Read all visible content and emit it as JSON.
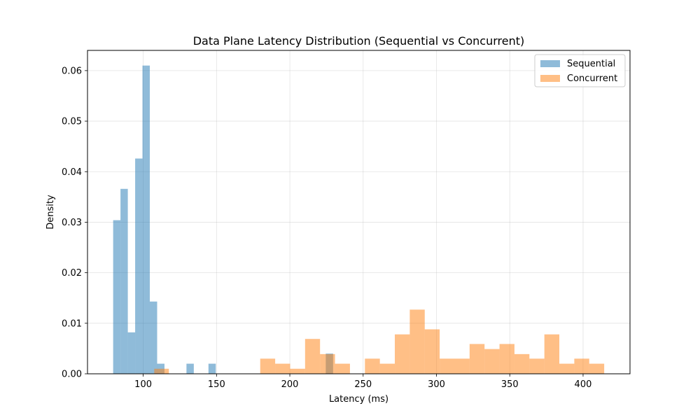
{
  "chart_data": {
    "type": "histogram",
    "title": "Data Plane Latency Distribution (Sequential vs Concurrent)",
    "xlabel": "Latency (ms)",
    "ylabel": "Density",
    "xlim": [
      62,
      432
    ],
    "ylim": [
      0,
      0.064
    ],
    "xticks": [
      100,
      150,
      200,
      250,
      300,
      350,
      400
    ],
    "yticks": [
      0.0,
      0.01,
      0.02,
      0.03,
      0.04,
      0.05,
      0.06
    ],
    "grid": true,
    "legend_position": "top-right",
    "series": [
      {
        "name": "Sequential",
        "color": "#1f77b4",
        "alpha": 0.5,
        "bins": [
          {
            "x0": 79.5,
            "x1": 84.5,
            "density": 0.0304
          },
          {
            "x0": 84.5,
            "x1": 89.5,
            "density": 0.0366
          },
          {
            "x0": 89.5,
            "x1": 94.5,
            "density": 0.0082
          },
          {
            "x0": 94.5,
            "x1": 99.5,
            "density": 0.0426
          },
          {
            "x0": 99.5,
            "x1": 104.5,
            "density": 0.061
          },
          {
            "x0": 104.5,
            "x1": 109.5,
            "density": 0.0143
          },
          {
            "x0": 109.5,
            "x1": 114.5,
            "density": 0.002
          },
          {
            "x0": 129.5,
            "x1": 134.5,
            "density": 0.002
          },
          {
            "x0": 144.5,
            "x1": 149.5,
            "density": 0.002
          },
          {
            "x0": 224.5,
            "x1": 229.5,
            "density": 0.004
          }
        ]
      },
      {
        "name": "Concurrent",
        "color": "#ff7f0e",
        "alpha": 0.5,
        "bins": [
          {
            "x0": 107.5,
            "x1": 117.5,
            "density": 0.001
          },
          {
            "x0": 179.8,
            "x1": 190.0,
            "density": 0.003
          },
          {
            "x0": 190.0,
            "x1": 200.2,
            "density": 0.002
          },
          {
            "x0": 200.2,
            "x1": 210.4,
            "density": 0.001
          },
          {
            "x0": 210.4,
            "x1": 220.6,
            "density": 0.0069
          },
          {
            "x0": 220.6,
            "x1": 230.8,
            "density": 0.0039
          },
          {
            "x0": 230.8,
            "x1": 241.0,
            "density": 0.002
          },
          {
            "x0": 251.2,
            "x1": 261.4,
            "density": 0.003
          },
          {
            "x0": 261.4,
            "x1": 271.6,
            "density": 0.002
          },
          {
            "x0": 271.6,
            "x1": 281.8,
            "density": 0.0078
          },
          {
            "x0": 281.8,
            "x1": 292.0,
            "density": 0.0127
          },
          {
            "x0": 292.0,
            "x1": 302.2,
            "density": 0.0088
          },
          {
            "x0": 302.2,
            "x1": 312.4,
            "density": 0.003
          },
          {
            "x0": 312.4,
            "x1": 322.6,
            "density": 0.003
          },
          {
            "x0": 322.6,
            "x1": 332.8,
            "density": 0.0059
          },
          {
            "x0": 332.8,
            "x1": 343.0,
            "density": 0.0049
          },
          {
            "x0": 343.0,
            "x1": 353.2,
            "density": 0.0059
          },
          {
            "x0": 353.2,
            "x1": 363.4,
            "density": 0.0039
          },
          {
            "x0": 363.4,
            "x1": 373.6,
            "density": 0.003
          },
          {
            "x0": 373.6,
            "x1": 383.8,
            "density": 0.0078
          },
          {
            "x0": 383.8,
            "x1": 394.0,
            "density": 0.002
          },
          {
            "x0": 394.0,
            "x1": 404.2,
            "density": 0.003
          },
          {
            "x0": 404.2,
            "x1": 414.4,
            "density": 0.002
          }
        ]
      }
    ]
  }
}
